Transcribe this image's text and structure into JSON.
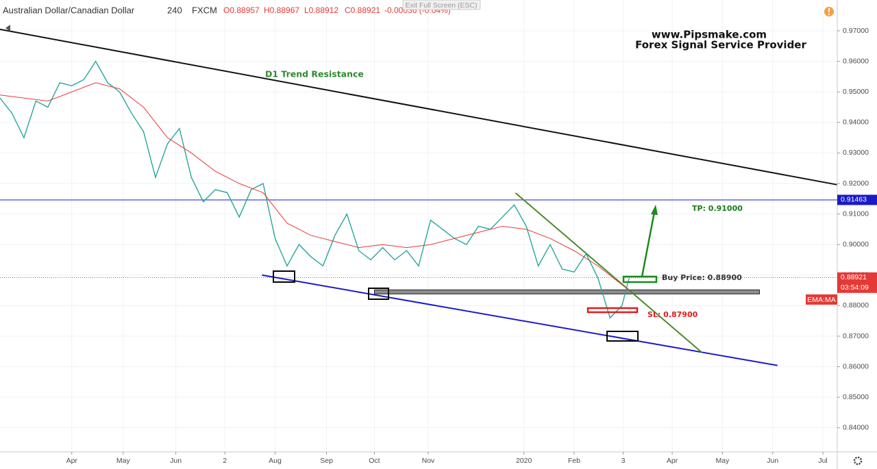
{
  "chart_data": {
    "type": "line",
    "title": "Australian Dollar/Canadian Dollar",
    "interval": "240",
    "source": "FXCM",
    "ohlc": {
      "open": "O0.88957",
      "high": "H0.88967",
      "low": "L0.88912",
      "close": "C0.88921",
      "change": "-0.00036 (-0.04%)"
    },
    "xlim": [
      0,
      70
    ],
    "ylim": [
      0.8321,
      0.9801
    ],
    "xticks": [
      {
        "value": 6.0,
        "label": "Apr"
      },
      {
        "value": 10.3,
        "label": "May"
      },
      {
        "value": 14.7,
        "label": "Jun"
      },
      {
        "value": 18.8,
        "label": "2"
      },
      {
        "value": 23.0,
        "label": "Aug"
      },
      {
        "value": 27.3,
        "label": "Sep"
      },
      {
        "value": 31.3,
        "label": "Oct"
      },
      {
        "value": 35.8,
        "label": "Nov"
      },
      {
        "value": 43.8,
        "label": "2020"
      },
      {
        "value": 48.0,
        "label": "Feb"
      },
      {
        "value": 52.1,
        "label": "3"
      },
      {
        "value": 56.2,
        "label": "Apr"
      },
      {
        "value": 60.4,
        "label": "May"
      },
      {
        "value": 64.6,
        "label": "Jun"
      },
      {
        "value": 68.8,
        "label": "Jul"
      }
    ],
    "yticks": [
      {
        "value": 0.97,
        "label": "0.97000"
      },
      {
        "value": 0.96,
        "label": "0.96000"
      },
      {
        "value": 0.95,
        "label": "0.95000"
      },
      {
        "value": 0.94,
        "label": "0.94000"
      },
      {
        "value": 0.93,
        "label": "0.93000"
      },
      {
        "value": 0.92,
        "label": "0.92000"
      },
      {
        "value": 0.91,
        "label": "0.91000"
      },
      {
        "value": 0.9,
        "label": "0.90000"
      },
      {
        "value": 0.89,
        "label": "0.89000"
      },
      {
        "value": 0.88,
        "label": "0.88000"
      },
      {
        "value": 0.87,
        "label": "0.87000"
      },
      {
        "value": 0.86,
        "label": "0.86000"
      },
      {
        "value": 0.85,
        "label": "0.85000"
      },
      {
        "value": 0.84,
        "label": "0.84000"
      }
    ],
    "grid": true,
    "series": [
      {
        "color": "#26a69a",
        "x": [
          0,
          1,
          2,
          3,
          4,
          5,
          6,
          7,
          8,
          9,
          10,
          11,
          12,
          13,
          14,
          15,
          16,
          17,
          18,
          19,
          20,
          21,
          22,
          23,
          24,
          25,
          26,
          27,
          28,
          29,
          30,
          31,
          32,
          33,
          34,
          35,
          36,
          37,
          38,
          39,
          40,
          41,
          42,
          43,
          44,
          45,
          46,
          47,
          48,
          49,
          50,
          51,
          52,
          52.6
        ],
        "values": [
          0.948,
          0.943,
          0.935,
          0.947,
          0.945,
          0.953,
          0.952,
          0.954,
          0.96,
          0.953,
          0.95,
          0.943,
          0.937,
          0.922,
          0.933,
          0.938,
          0.922,
          0.914,
          0.918,
          0.917,
          0.909,
          0.918,
          0.92,
          0.902,
          0.893,
          0.9,
          0.896,
          0.893,
          0.903,
          0.91,
          0.898,
          0.895,
          0.899,
          0.895,
          0.898,
          0.893,
          0.908,
          0.905,
          0.902,
          0.9,
          0.906,
          0.905,
          0.909,
          0.913,
          0.906,
          0.893,
          0.9,
          0.892,
          0.891,
          0.897,
          0.889,
          0.876,
          0.88,
          0.889
        ]
      },
      {
        "name": "EMA:MA",
        "color": "#e53935",
        "x": [
          0,
          4,
          8,
          10,
          12,
          14,
          16,
          18,
          20,
          22,
          24,
          26,
          28,
          30,
          32,
          34,
          36,
          38,
          40,
          42,
          44,
          46,
          48,
          50,
          52.6
        ],
        "values": [
          0.949,
          0.947,
          0.953,
          0.951,
          0.945,
          0.935,
          0.93,
          0.924,
          0.92,
          0.917,
          0.907,
          0.903,
          0.901,
          0.899,
          0.9,
          0.899,
          0.9,
          0.902,
          0.904,
          0.906,
          0.905,
          0.902,
          0.898,
          0.893,
          0.885
        ]
      }
    ],
    "price_lines": [
      {
        "value": 0.91463,
        "label": "0.91463",
        "color": "#1a1ac8",
        "style": "solid"
      },
      {
        "value": 0.88921,
        "label": "0.88921",
        "color": "#e53935",
        "style": "dotted",
        "countdown": "03:54:09"
      }
    ],
    "trend_lines": [
      {
        "x": [
          0,
          70
        ],
        "y": [
          0.9705,
          0.9196
        ],
        "color": "#111111"
      },
      {
        "x": [
          21.9,
          65.0
        ],
        "y": [
          0.89,
          0.8604
        ],
        "color": "#1a1ac8"
      },
      {
        "x": [
          43.1,
          58.7
        ],
        "y": [
          0.9169,
          0.8646
        ],
        "color": "#4a8a2a"
      }
    ],
    "zone": {
      "x": [
        31.3,
        63.5
      ],
      "y": 0.8845,
      "color": "#8c8c8c"
    },
    "annotations": {
      "site": "www.Pipsmake.com",
      "tagline": "Forex Signal Service Provider",
      "resistance": "D1 Trend Resistance",
      "tp": "TP: 0.91000",
      "buy": "Buy Price: 0.88900",
      "sl": "SL: 0.87900"
    },
    "exit_hint": "Exit Full Screen (ESC)"
  }
}
